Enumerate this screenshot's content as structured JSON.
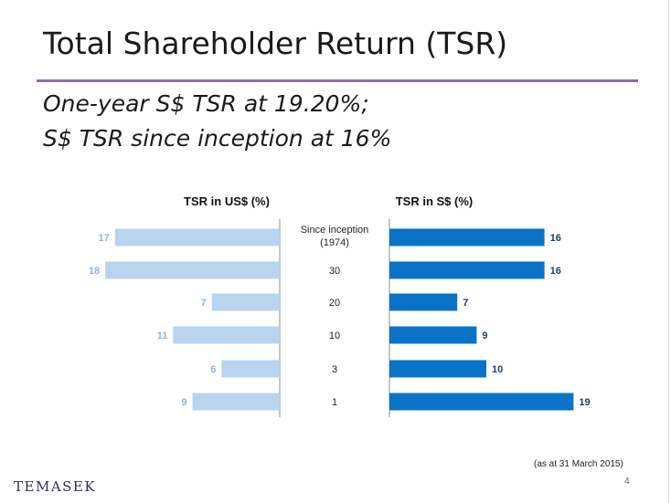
{
  "slide": {
    "title": "Total Shareholder Return (TSR)",
    "subtitle_line1": "One-year S$ TSR at 19.20%;",
    "subtitle_line2": "S$ TSR since inception at 16%",
    "footnote": "(as at 31 March 2015)",
    "page_number": "4",
    "logo_text": "TEMASEK"
  },
  "colors": {
    "usd_bar": "#b8d4ef",
    "usd_label": "#8fb4d9",
    "sgd_bar": "#0a73c8",
    "sgd_label": "#1f3f66",
    "title_rule": "#8a6fa9"
  },
  "chart_data": {
    "type": "bar",
    "orientation": "horizontal",
    "layout": "back-to-back",
    "categories": [
      [
        "Since inception",
        "(1974)"
      ],
      [
        "30"
      ],
      [
        "20"
      ],
      [
        "10"
      ],
      [
        "3"
      ],
      [
        "1"
      ]
    ],
    "series": [
      {
        "name": "TSR in US$ (%)",
        "values": [
          17,
          18,
          7,
          11,
          6,
          9
        ]
      },
      {
        "name": "TSR in S$ (%)",
        "values": [
          16,
          16,
          7,
          9,
          10,
          19
        ]
      }
    ],
    "xlim": [
      0,
      20
    ]
  }
}
